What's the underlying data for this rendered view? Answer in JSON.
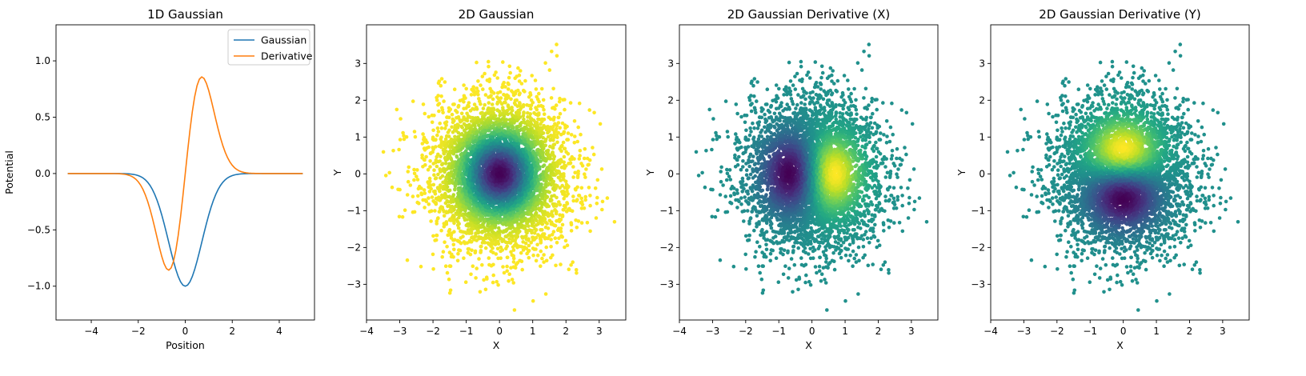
{
  "chart_data": [
    {
      "type": "line",
      "title": "1D Gaussian",
      "xlabel": "Position",
      "ylabel": "Potential",
      "xlim": [
        -5.5,
        5.5
      ],
      "ylim": [
        -1.3,
        1.32
      ],
      "xticks": [
        -4,
        -2,
        0,
        2,
        4
      ],
      "yticks": [
        -1.0,
        -0.5,
        0.0,
        0.5,
        1.0
      ],
      "xtick_labels": [
        "−4",
        "−2",
        "0",
        "2",
        "4"
      ],
      "ytick_labels": [
        "−1.0",
        "−0.5",
        "0.0",
        "0.5",
        "1.0"
      ],
      "legend": "top-right",
      "x_range": [
        -5,
        5
      ],
      "series": [
        {
          "name": "Gaussian",
          "color": "#1f77b4",
          "function": "-exp(-x^2)"
        },
        {
          "name": "Derivative",
          "color": "#ff7f0e",
          "function": "2x·exp(-x^2)"
        }
      ]
    },
    {
      "type": "scatter",
      "title": "2D Gaussian",
      "xlabel": "X",
      "ylabel": "Y",
      "xlim": [
        -4.0,
        3.8
      ],
      "ylim": [
        -3.97,
        4.05
      ],
      "xticks": [
        -4,
        -3,
        -2,
        -1,
        0,
        1,
        2,
        3
      ],
      "yticks": [
        -3,
        -2,
        -1,
        0,
        1,
        2,
        3
      ],
      "xtick_labels": [
        "−4",
        "−3",
        "−2",
        "−1",
        "0",
        "1",
        "2",
        "3"
      ],
      "ytick_labels": [
        "−3",
        "−2",
        "−1",
        "0",
        "1",
        "2",
        "3"
      ],
      "colormap": "viridis",
      "color_value": "-exp(-(x^2+y^2))",
      "samples": "standard normal, ~5000 points"
    },
    {
      "type": "scatter",
      "title": "2D Gaussian Derivative (X)",
      "xlabel": "X",
      "ylabel": "Y",
      "xlim": [
        -4.0,
        3.8
      ],
      "ylim": [
        -3.97,
        4.05
      ],
      "xticks": [
        -4,
        -3,
        -2,
        -1,
        0,
        1,
        2,
        3
      ],
      "yticks": [
        -3,
        -2,
        -1,
        0,
        1,
        2,
        3
      ],
      "xtick_labels": [
        "−4",
        "−3",
        "−2",
        "−1",
        "0",
        "1",
        "2",
        "3"
      ],
      "ytick_labels": [
        "−3",
        "−2",
        "−1",
        "0",
        "1",
        "2",
        "3"
      ],
      "colormap": "viridis",
      "color_value": "2x·exp(-(x^2+y^2))",
      "samples": "standard normal, ~5000 points"
    },
    {
      "type": "scatter",
      "title": "2D Gaussian Derivative (Y)",
      "xlabel": "X",
      "ylabel": "Y",
      "xlim": [
        -4.0,
        3.8
      ],
      "ylim": [
        -3.97,
        4.05
      ],
      "xticks": [
        -4,
        -3,
        -2,
        -1,
        0,
        1,
        2,
        3
      ],
      "yticks": [
        -3,
        -2,
        -1,
        0,
        1,
        2,
        3
      ],
      "xtick_labels": [
        "−4",
        "−3",
        "−2",
        "−1",
        "0",
        "1",
        "2",
        "3"
      ],
      "ytick_labels": [
        "−3",
        "−2",
        "−1",
        "0",
        "1",
        "2",
        "3"
      ],
      "colormap": "viridis",
      "color_value": "2y·exp(-(x^2+y^2))",
      "samples": "standard normal, ~5000 points"
    }
  ]
}
